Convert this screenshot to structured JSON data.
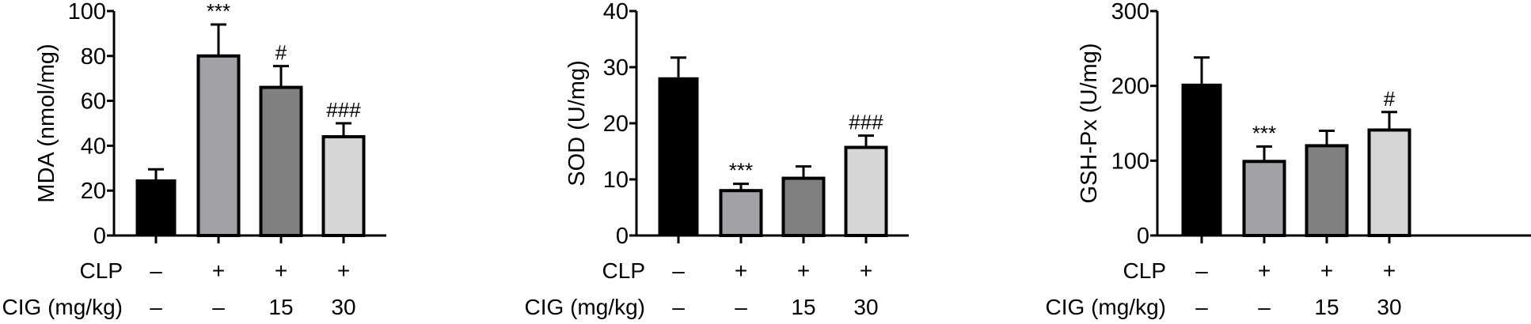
{
  "chart_data": [
    {
      "type": "bar",
      "ylabel": "MDA (nmol/mg)",
      "ylim": [
        0,
        100
      ],
      "yticks": [
        "0",
        "20",
        "40",
        "60",
        "80",
        "100"
      ],
      "ytick_values": [
        0,
        20,
        40,
        60,
        80,
        100
      ],
      "values": [
        25,
        80,
        66,
        44
      ],
      "errors": [
        4.5,
        14,
        9.5,
        6
      ],
      "significance": [
        "",
        "***",
        "#",
        "###"
      ],
      "colors": [
        "#000000",
        "#a2a2a6",
        "#808080",
        "#d6d6d6"
      ]
    },
    {
      "type": "bar",
      "ylabel": "SOD (U/mg)",
      "ylim": [
        0,
        40
      ],
      "yticks": [
        "0",
        "10",
        "20",
        "30",
        "40"
      ],
      "ytick_values": [
        0,
        10,
        20,
        30,
        40
      ],
      "values": [
        28.2,
        8.0,
        10.2,
        15.7
      ],
      "errors": [
        3.5,
        1.2,
        2.1,
        2.1
      ],
      "significance": [
        "",
        "***",
        "",
        "###"
      ],
      "colors": [
        "#000000",
        "#a2a2a6",
        "#808080",
        "#d6d6d6"
      ]
    },
    {
      "type": "bar",
      "ylabel": "GSH-Px (U/mg)",
      "ylim": [
        0,
        300
      ],
      "yticks": [
        "0",
        "100",
        "200",
        "300"
      ],
      "ytick_values": [
        0,
        100,
        200,
        300
      ],
      "values": [
        203,
        99,
        120,
        141
      ],
      "errors": [
        35,
        20,
        20,
        24
      ],
      "significance": [
        "",
        "***",
        "",
        "#"
      ],
      "colors": [
        "#000000",
        "#a2a2a6",
        "#808080",
        "#d6d6d6"
      ]
    }
  ],
  "groups": {
    "clp_label": "CLP",
    "clp": [
      "–",
      "+",
      "+",
      "+"
    ],
    "cig_label": "CIG (mg/kg)",
    "cig": [
      "–",
      "–",
      "15",
      "30"
    ]
  }
}
